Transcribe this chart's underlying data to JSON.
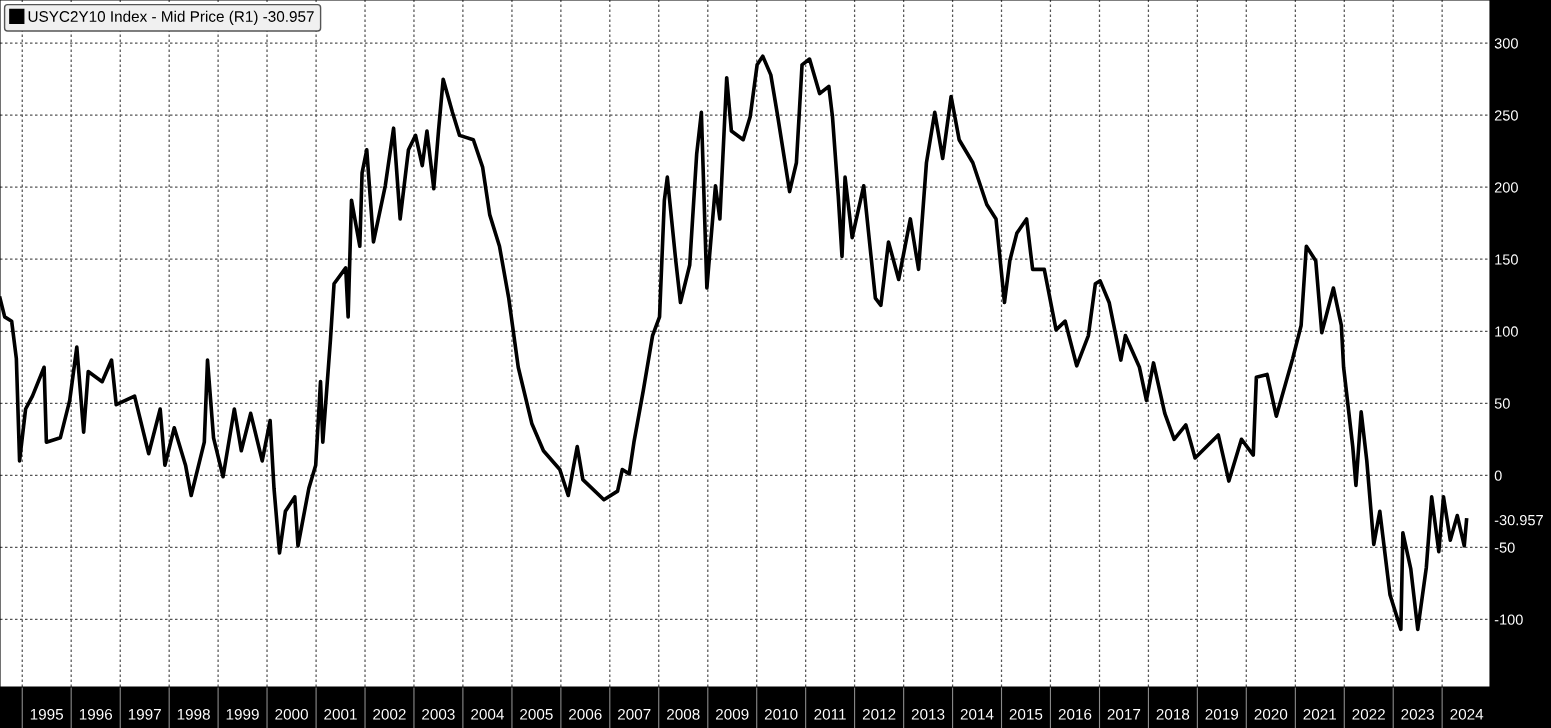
{
  "chart_data": {
    "type": "line",
    "series": [
      {
        "name": "USYC2Y10 Index - Mid Price (R1) -30.957",
        "color": "#000000",
        "x": [
          "1994-07-19",
          "1994-08-23",
          "1994-10-14",
          "1994-11-18",
          "1994-12-12",
          "1995-01-26",
          "1995-03-18",
          "1995-06-13",
          "1995-06-30",
          "1995-10-12",
          "1995-12-21",
          "1996-02-12",
          "1996-04-03",
          "1996-05-07",
          "1996-08-19",
          "1996-10-28",
          "1996-12-02",
          "1997-04-18",
          "1997-08-01",
          "1997-10-26",
          "1997-11-30",
          "1998-02-08",
          "1998-05-03",
          "1998-06-14",
          "1998-09-20",
          "1998-10-14",
          "1998-11-28",
          "1999-02-07",
          "1999-05-02",
          "1999-06-23",
          "1999-09-01",
          "1999-11-26",
          "2000-01-24",
          "2000-02-22",
          "2000-04-03",
          "2000-05-17",
          "2000-07-26",
          "2000-08-19",
          "2000-11-08",
          "2000-12-29",
          "2001-02-03",
          "2001-02-20",
          "2001-04-18",
          "2001-05-15",
          "2001-08-10",
          "2001-08-28",
          "2001-09-22",
          "2001-11-23",
          "2001-12-10",
          "2002-01-14",
          "2002-03-05",
          "2002-06-01",
          "2002-08-02",
          "2002-09-20",
          "2002-11-21",
          "2003-01-13",
          "2003-03-04",
          "2003-04-08",
          "2003-05-29",
          "2003-07-03",
          "2003-08-07",
          "2003-10-15",
          "2003-12-07",
          "2004-03-19",
          "2004-05-27",
          "2004-07-19",
          "2004-09-30",
          "2004-12-08",
          "2005-02-17",
          "2005-05-29",
          "2005-08-24",
          "2005-12-24",
          "2006-02-25",
          "2006-05-03",
          "2006-06-14",
          "2006-11-18",
          "2007-02-28",
          "2007-04-04",
          "2007-05-26",
          "2007-06-30",
          "2007-09-08",
          "2007-11-16",
          "2008-01-07",
          "2008-02-12",
          "2008-03-05",
          "2008-05-07",
          "2008-06-11",
          "2008-08-19",
          "2008-10-10",
          "2008-11-14",
          "2008-12-25",
          "2009-02-27",
          "2009-04-01",
          "2009-05-22",
          "2009-06-26",
          "2009-09-22",
          "2009-11-13",
          "2010-01-04",
          "2010-02-15",
          "2010-04-16",
          "2010-06-07",
          "2010-09-03",
          "2010-10-24",
          "2010-12-05",
          "2011-01-30",
          "2011-04-15",
          "2011-06-23",
          "2011-07-20",
          "2011-09-01",
          "2011-09-29",
          "2011-10-22",
          "2011-12-14",
          "2012-03-09",
          "2012-06-04",
          "2012-07-15",
          "2012-09-10",
          "2012-11-25",
          "2013-02-20",
          "2013-04-22",
          "2013-06-20",
          "2013-08-21",
          "2013-10-19",
          "2013-12-21",
          "2014-02-19",
          "2014-06-01",
          "2014-09-13",
          "2014-11-21",
          "2015-01-23",
          "2015-03-04",
          "2015-04-25",
          "2015-07-07",
          "2015-08-21",
          "2015-11-16",
          "2016-02-12",
          "2016-04-20",
          "2016-07-15",
          "2016-10-10",
          "2016-12-01",
          "2017-01-06",
          "2017-03-14",
          "2017-06-09",
          "2017-07-13",
          "2017-10-26",
          "2017-12-17",
          "2018-02-08",
          "2018-05-03",
          "2018-07-12",
          "2018-10-07",
          "2018-12-15",
          "2019-06-06",
          "2019-08-24",
          "2019-11-26",
          "2020-02-22",
          "2020-03-16",
          "2020-06-04",
          "2020-08-12",
          "2020-12-12",
          "2021-02-13",
          "2021-03-24",
          "2021-06-02",
          "2021-07-17",
          "2021-10-12",
          "2021-12-10",
          "2021-12-27",
          "2022-03-05",
          "2022-03-29",
          "2022-05-07",
          "2022-06-18",
          "2022-08-09",
          "2022-09-23",
          "2022-12-08",
          "2023-02-27",
          "2023-03-14",
          "2023-05-12",
          "2023-07-03",
          "2023-09-05",
          "2023-10-15",
          "2023-12-07",
          "2024-01-11",
          "2024-03-02",
          "2024-04-23",
          "2024-06-14",
          "2024-07-01"
        ],
        "values": [
          123,
          110,
          107,
          81,
          10,
          46,
          55,
          75,
          23,
          26,
          52,
          89,
          30,
          72,
          65,
          80,
          49,
          55,
          15,
          46,
          7,
          33,
          7,
          -14,
          23,
          80,
          26,
          -1,
          46,
          17,
          43,
          10,
          38,
          -9,
          -54,
          -25,
          -15,
          -49,
          -9,
          7,
          65,
          23,
          94,
          133,
          144,
          110,
          191,
          159,
          210,
          226,
          162,
          201,
          241,
          178,
          226,
          236,
          215,
          239,
          199,
          239,
          275,
          252,
          236,
          233,
          214,
          181,
          159,
          123,
          75,
          36,
          17,
          4,
          -14,
          20,
          -3,
          -17,
          -11,
          4,
          1,
          23,
          59,
          97,
          110,
          191,
          207,
          149,
          120,
          146,
          223,
          252,
          130,
          201,
          178,
          276,
          239,
          233,
          249,
          285,
          291,
          278,
          249,
          197,
          217,
          285,
          289,
          265,
          270,
          249,
          194,
          152,
          207,
          165,
          201,
          123,
          118,
          162,
          136,
          178,
          143,
          217,
          252,
          220,
          263,
          233,
          217,
          188,
          178,
          120,
          149,
          168,
          178,
          143,
          143,
          101,
          107,
          76,
          97,
          133,
          135,
          120,
          80,
          97,
          75,
          52,
          78,
          43,
          25,
          35,
          12,
          28,
          -4,
          25,
          14,
          68,
          70,
          41,
          81,
          104,
          159,
          149,
          99,
          130,
          104,
          75,
          20,
          -7,
          44,
          10,
          -48,
          -25,
          -83,
          -107,
          -40,
          -65,
          -107,
          -64,
          -15,
          -53,
          -15,
          -45,
          -28,
          -49,
          -30.957
        ]
      }
    ],
    "xlim": [
      "1994-07-19",
      "2024-12-23"
    ],
    "xticks": [
      {
        "value": "1995-01-01",
        "label": null
      },
      {
        "value": "1995-07-02",
        "label": "1995"
      },
      {
        "value": "1996-01-01",
        "label": null
      },
      {
        "value": "1996-07-02",
        "label": "1996"
      },
      {
        "value": "1997-01-01",
        "label": null
      },
      {
        "value": "1997-07-02",
        "label": "1997"
      },
      {
        "value": "1998-01-01",
        "label": null
      },
      {
        "value": "1998-07-02",
        "label": "1998"
      },
      {
        "value": "1999-01-01",
        "label": null
      },
      {
        "value": "1999-07-02",
        "label": "1999"
      },
      {
        "value": "2000-01-01",
        "label": null
      },
      {
        "value": "2000-07-02",
        "label": "2000"
      },
      {
        "value": "2001-01-01",
        "label": null
      },
      {
        "value": "2001-07-02",
        "label": "2001"
      },
      {
        "value": "2002-01-01",
        "label": null
      },
      {
        "value": "2002-07-02",
        "label": "2002"
      },
      {
        "value": "2003-01-01",
        "label": null
      },
      {
        "value": "2003-07-02",
        "label": "2003"
      },
      {
        "value": "2004-01-01",
        "label": null
      },
      {
        "value": "2004-07-02",
        "label": "2004"
      },
      {
        "value": "2005-01-01",
        "label": null
      },
      {
        "value": "2005-07-02",
        "label": "2005"
      },
      {
        "value": "2006-01-01",
        "label": null
      },
      {
        "value": "2006-07-02",
        "label": "2006"
      },
      {
        "value": "2007-01-01",
        "label": null
      },
      {
        "value": "2007-07-02",
        "label": "2007"
      },
      {
        "value": "2008-01-01",
        "label": null
      },
      {
        "value": "2008-07-02",
        "label": "2008"
      },
      {
        "value": "2009-01-01",
        "label": null
      },
      {
        "value": "2009-07-02",
        "label": "2009"
      },
      {
        "value": "2010-01-01",
        "label": null
      },
      {
        "value": "2010-07-02",
        "label": "2010"
      },
      {
        "value": "2011-01-01",
        "label": null
      },
      {
        "value": "2011-07-02",
        "label": "2011"
      },
      {
        "value": "2012-01-01",
        "label": null
      },
      {
        "value": "2012-07-02",
        "label": "2012"
      },
      {
        "value": "2013-01-01",
        "label": null
      },
      {
        "value": "2013-07-02",
        "label": "2013"
      },
      {
        "value": "2014-01-01",
        "label": null
      },
      {
        "value": "2014-07-02",
        "label": "2014"
      },
      {
        "value": "2015-01-01",
        "label": null
      },
      {
        "value": "2015-07-02",
        "label": "2015"
      },
      {
        "value": "2016-01-01",
        "label": null
      },
      {
        "value": "2016-07-02",
        "label": "2016"
      },
      {
        "value": "2017-01-01",
        "label": null
      },
      {
        "value": "2017-07-02",
        "label": "2017"
      },
      {
        "value": "2018-01-01",
        "label": null
      },
      {
        "value": "2018-07-02",
        "label": "2018"
      },
      {
        "value": "2019-01-01",
        "label": null
      },
      {
        "value": "2019-07-02",
        "label": "2019"
      },
      {
        "value": "2020-01-01",
        "label": null
      },
      {
        "value": "2020-07-02",
        "label": "2020"
      },
      {
        "value": "2021-01-01",
        "label": null
      },
      {
        "value": "2021-07-02",
        "label": "2021"
      },
      {
        "value": "2022-01-01",
        "label": null
      },
      {
        "value": "2022-07-02",
        "label": "2022"
      },
      {
        "value": "2023-01-01",
        "label": null
      },
      {
        "value": "2023-07-02",
        "label": "2023"
      },
      {
        "value": "2024-01-01",
        "label": null
      },
      {
        "value": "2024-07-02",
        "label": "2024"
      }
    ],
    "ylim": [
      -147,
      330
    ],
    "yticks": [
      -100,
      -50,
      {
        "value": -30.957,
        "label": "-30.957"
      },
      0,
      50,
      100,
      150,
      200,
      250,
      300
    ],
    "grid": true,
    "legend": "top left",
    "marker": "none",
    "line_style": "solid"
  }
}
